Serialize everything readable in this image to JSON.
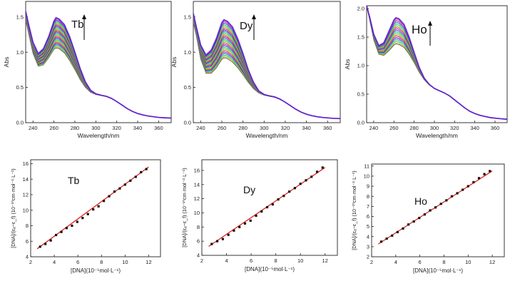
{
  "chart_data": [
    {
      "type": "line",
      "label": "Tb",
      "xlabel": "Wavelength/nm",
      "ylabel": "Abs",
      "xlim": [
        233,
        372
      ],
      "ylim": [
        0.0,
        1.72
      ],
      "xticks": [
        240,
        260,
        280,
        300,
        320,
        340,
        360
      ],
      "yticks": [
        0.0,
        0.5,
        1.0,
        1.5
      ],
      "ytick_labels": [
        "0.0",
        "0.5",
        "1.0",
        "1.5"
      ],
      "grid": false,
      "arrow": "up",
      "curve_count": 40,
      "peak_wavelength": 262,
      "peak_abs_range": [
        0.95,
        1.52
      ],
      "x": [
        233,
        236,
        240,
        245,
        250,
        255,
        260,
        262,
        265,
        270,
        275,
        280,
        285,
        290,
        295,
        300,
        305,
        310,
        315,
        320,
        325,
        330,
        335,
        340,
        345,
        350,
        355,
        360,
        365,
        372
      ],
      "series": [
        {
          "values": [
            1.45,
            1.25,
            0.98,
            0.8,
            0.82,
            0.92,
            1.04,
            1.06,
            1.05,
            0.99,
            0.88,
            0.75,
            0.61,
            0.5,
            0.43,
            0.4,
            0.385,
            0.37,
            0.34,
            0.3,
            0.25,
            0.2,
            0.16,
            0.13,
            0.11,
            0.095,
            0.085,
            0.075,
            0.07,
            0.065
          ]
        },
        {
          "values": [
            1.58,
            1.38,
            1.14,
            0.98,
            1.05,
            1.22,
            1.44,
            1.49,
            1.47,
            1.39,
            1.22,
            1.0,
            0.77,
            0.58,
            0.46,
            0.41,
            0.39,
            0.375,
            0.345,
            0.3,
            0.25,
            0.2,
            0.16,
            0.13,
            0.11,
            0.095,
            0.085,
            0.075,
            0.07,
            0.065
          ]
        }
      ]
    },
    {
      "type": "line",
      "label": "Dy",
      "xlabel": "Wavelength/nm",
      "ylabel": "Abs",
      "xlim": [
        233,
        372
      ],
      "ylim": [
        0.0,
        1.72
      ],
      "xticks": [
        240,
        260,
        280,
        300,
        320,
        340,
        360
      ],
      "yticks": [
        0.0,
        0.5,
        1.0,
        1.5
      ],
      "ytick_labels": [
        "0.0",
        "0.5",
        "1.0",
        "1.5"
      ],
      "grid": false,
      "arrow": "up",
      "curve_count": 40,
      "peak_wavelength": 262,
      "peak_abs_range": [
        0.82,
        1.48
      ],
      "x": [
        233,
        236,
        240,
        245,
        250,
        255,
        260,
        262,
        265,
        270,
        275,
        280,
        285,
        290,
        295,
        300,
        305,
        310,
        315,
        320,
        325,
        330,
        335,
        340,
        345,
        350,
        355,
        360,
        365,
        372
      ],
      "series": [
        {
          "values": [
            1.42,
            1.22,
            0.9,
            0.7,
            0.7,
            0.78,
            0.9,
            0.92,
            0.91,
            0.86,
            0.78,
            0.68,
            0.57,
            0.48,
            0.42,
            0.39,
            0.375,
            0.36,
            0.33,
            0.29,
            0.24,
            0.19,
            0.15,
            0.12,
            0.1,
            0.085,
            0.075,
            0.068,
            0.062,
            0.058
          ]
        },
        {
          "values": [
            1.55,
            1.35,
            1.1,
            0.96,
            1.03,
            1.2,
            1.42,
            1.46,
            1.44,
            1.36,
            1.19,
            0.98,
            0.75,
            0.57,
            0.45,
            0.4,
            0.38,
            0.365,
            0.335,
            0.29,
            0.24,
            0.19,
            0.15,
            0.12,
            0.1,
            0.085,
            0.075,
            0.068,
            0.062,
            0.058
          ]
        }
      ]
    },
    {
      "type": "line",
      "label": "Ho",
      "xlabel": "Wavelength/nm",
      "ylabel": "Abs",
      "xlim": [
        233,
        372
      ],
      "ylim": [
        0.0,
        2.05
      ],
      "xticks": [
        240,
        260,
        280,
        300,
        320,
        340,
        360
      ],
      "yticks": [
        0.0,
        0.5,
        1.0,
        1.5,
        2.0
      ],
      "ytick_labels": [
        "0.0",
        "0.5",
        "1.0",
        "1.5",
        "2.0"
      ],
      "grid": false,
      "arrow": "up",
      "curve_count": 25,
      "peak_wavelength": 264,
      "peak_abs_range": [
        1.38,
        1.85
      ],
      "x": [
        233,
        236,
        240,
        245,
        250,
        255,
        260,
        262,
        265,
        270,
        275,
        280,
        285,
        290,
        295,
        300,
        305,
        310,
        315,
        320,
        325,
        330,
        335,
        340,
        345,
        350,
        355,
        360,
        365,
        372
      ],
      "series": [
        {
          "values": [
            2.05,
            1.8,
            1.45,
            1.2,
            1.18,
            1.26,
            1.36,
            1.38,
            1.37,
            1.32,
            1.2,
            1.05,
            0.88,
            0.75,
            0.66,
            0.6,
            0.56,
            0.52,
            0.47,
            0.4,
            0.33,
            0.26,
            0.2,
            0.16,
            0.13,
            0.11,
            0.09,
            0.08,
            0.07,
            0.06
          ]
        },
        {
          "values": [
            2.05,
            1.85,
            1.55,
            1.35,
            1.4,
            1.6,
            1.8,
            1.84,
            1.82,
            1.72,
            1.5,
            1.23,
            0.97,
            0.78,
            0.67,
            0.6,
            0.56,
            0.52,
            0.47,
            0.4,
            0.33,
            0.26,
            0.2,
            0.16,
            0.13,
            0.11,
            0.09,
            0.08,
            0.07,
            0.06
          ]
        }
      ]
    },
    {
      "type": "scatter",
      "label": "Tb",
      "xlabel": "[DNA](10⁻⁵mol·L⁻¹)",
      "ylabel": "[DNA]/(εₐ−ε_f) (10⁻¹⁰cm·mol⁻²·L⁻¹)",
      "xlim": [
        2,
        13
      ],
      "ylim": [
        4,
        16.5
      ],
      "xticks": [
        2,
        4,
        6,
        8,
        10,
        12
      ],
      "yticks": [
        4,
        6,
        8,
        10,
        12,
        14,
        16
      ],
      "fit_line": {
        "slope": 1.117,
        "intercept": 2.18,
        "color": "#e8211a"
      },
      "x": [
        2.8,
        3.25,
        3.7,
        4.15,
        4.6,
        5.05,
        5.5,
        5.95,
        6.4,
        6.85,
        7.3,
        7.75,
        8.2,
        8.65,
        9.1,
        9.55,
        10.0,
        10.45,
        10.9,
        11.35,
        11.8
      ],
      "y": [
        5.3,
        5.65,
        6.1,
        6.8,
        7.2,
        7.7,
        8.0,
        8.5,
        9.0,
        9.5,
        10.1,
        10.5,
        11.2,
        11.8,
        12.4,
        12.8,
        13.3,
        13.8,
        14.3,
        14.9,
        15.3
      ]
    },
    {
      "type": "scatter",
      "label": "Dy",
      "xlabel": "[DNA](10⁻⁵mol·L⁻¹)",
      "ylabel": "[DNA]/(εₐ−ε_f) (10⁻¹⁰cm·mol⁻²·L⁻¹)",
      "xlim": [
        2,
        13
      ],
      "ylim": [
        4,
        17.5
      ],
      "xticks": [
        2,
        4,
        6,
        8,
        10,
        12
      ],
      "yticks": [
        4,
        6,
        8,
        10,
        12,
        14,
        16
      ],
      "fit_line": {
        "slope": 1.18,
        "intercept": 2.25,
        "color": "#e8211a"
      },
      "x": [
        2.8,
        3.25,
        3.7,
        4.15,
        4.6,
        5.05,
        5.5,
        5.95,
        6.4,
        6.85,
        7.3,
        7.75,
        8.2,
        8.65,
        9.1,
        9.55,
        10.0,
        10.45,
        10.9,
        11.35,
        11.8
      ],
      "y": [
        5.6,
        6.0,
        6.3,
        6.9,
        7.5,
        8.0,
        8.5,
        8.9,
        9.6,
        10.2,
        10.8,
        11.2,
        11.9,
        12.4,
        13.0,
        13.5,
        14.1,
        14.6,
        15.1,
        15.8,
        16.4
      ]
    },
    {
      "type": "scatter",
      "label": "Ho",
      "xlabel": "[DNA](10⁻⁵mol·L⁻¹)",
      "ylabel": "[DNA]/(εₐ−ε_f) (10⁻¹⁰cm·mol⁻²·L⁻¹)",
      "xlim": [
        2,
        13
      ],
      "ylim": [
        2,
        11.2
      ],
      "xticks": [
        2,
        4,
        6,
        8,
        10,
        12
      ],
      "yticks": [
        2,
        3,
        4,
        5,
        6,
        7,
        8,
        9,
        10,
        11
      ],
      "fit_line": {
        "slope": 0.767,
        "intercept": 1.31,
        "color": "#e8211a"
      },
      "x": [
        2.8,
        3.25,
        3.7,
        4.15,
        4.6,
        5.05,
        5.5,
        5.95,
        6.4,
        6.85,
        7.3,
        7.75,
        8.2,
        8.65,
        9.1,
        9.55,
        10.0,
        10.45,
        10.9,
        11.35,
        11.8
      ],
      "y": [
        3.5,
        3.8,
        4.1,
        4.45,
        4.8,
        5.2,
        5.5,
        5.85,
        6.2,
        6.6,
        6.9,
        7.25,
        7.6,
        8.0,
        8.3,
        8.65,
        9.0,
        9.4,
        9.8,
        10.2,
        10.5
      ]
    }
  ]
}
